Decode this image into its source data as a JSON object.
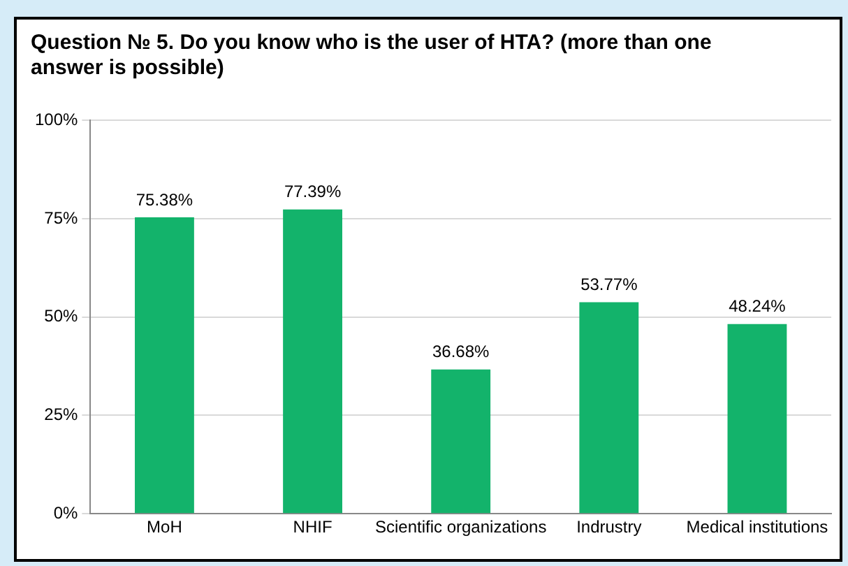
{
  "chart_data": {
    "type": "bar",
    "title": "Question № 5. Do you know who is the user of HTA? (more than one answer is possible)",
    "categories": [
      "MoH",
      "NHIF",
      "Scientific organizations",
      "Indrustry",
      "Medical institutions"
    ],
    "values": [
      75.38,
      77.39,
      36.68,
      53.77,
      48.24
    ],
    "color": "#13b36b",
    "value_labels": [
      "75.38%",
      "77.39%",
      "36.68%",
      "53.77%",
      "48.24%"
    ],
    "ylim": [
      0,
      100
    ],
    "yticks": [
      {
        "value": 0,
        "label": "0%"
      },
      {
        "value": 25,
        "label": "25%"
      },
      {
        "value": 50,
        "label": "50%"
      },
      {
        "value": 75,
        "label": "75%"
      },
      {
        "value": 100,
        "label": "100%"
      }
    ],
    "grid": "y",
    "legend": false
  }
}
